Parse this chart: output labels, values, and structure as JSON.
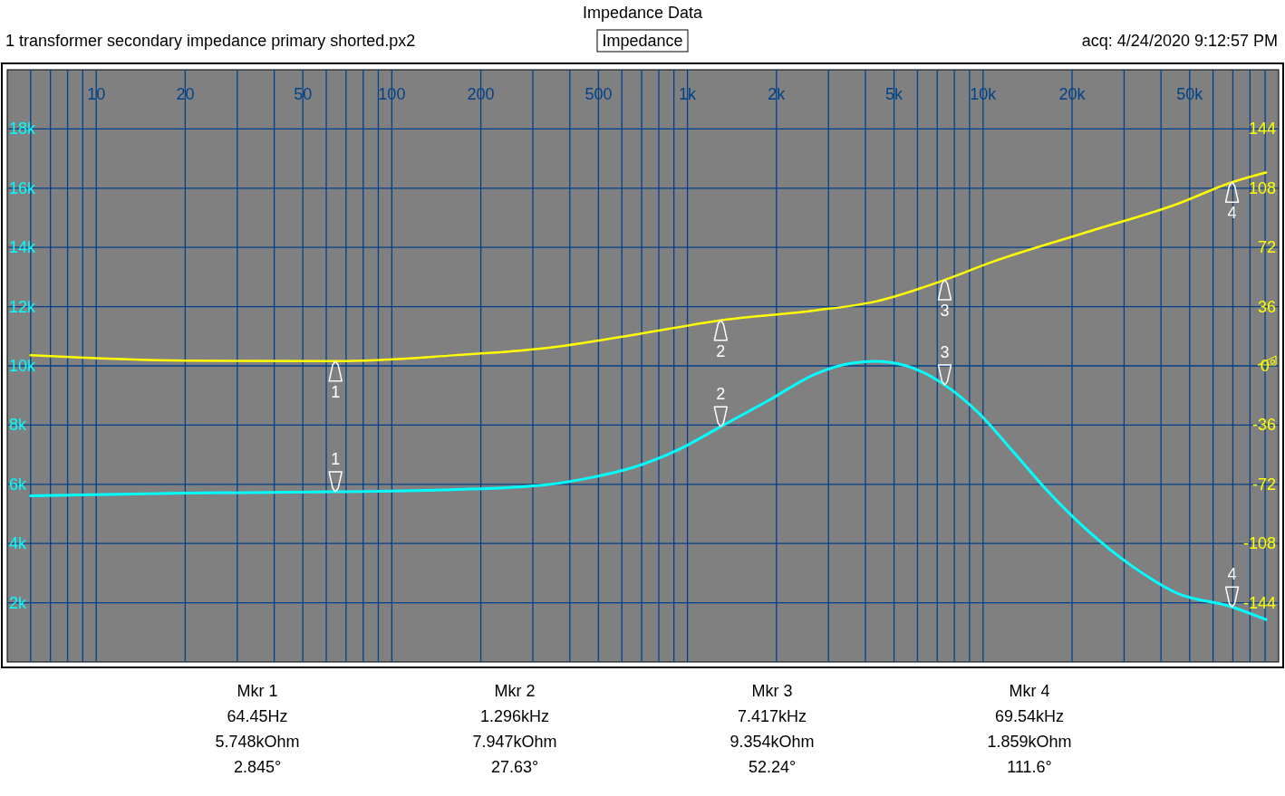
{
  "chart_data": {
    "type": "line",
    "title": "Impedance Data",
    "subtitle": "1 transformer secondary impedance primary shorted.px2",
    "annotations": [
      "Impedance",
      "acq: 4/24/2020 9:12:57 PM",
      "Mkr 1",
      "64.45Hz",
      "5.748kOhm",
      "2.845°",
      "Mkr 2",
      "1.296kHz",
      "7.947kOhm",
      "27.63°",
      "Mkr 3",
      "7.417kHz",
      "9.354kOhm",
      "52.24°",
      "Mkr 4",
      "69.54kHz",
      "1.859kOhm",
      "111.6°",
      {
        "text": "1",
        "x": 64.45,
        "y": 5748
      },
      {
        "text": "2",
        "x": 1296,
        "y": 7947
      },
      {
        "text": "3",
        "x": 7417,
        "y": 9354
      },
      {
        "text": "4",
        "x": 69540,
        "y": 1859
      },
      "1",
      "2",
      "3",
      "4"
    ],
    "log": "x",
    "grid": true,
    "xlim": [
      5,
      100000
    ],
    "xticks": [
      {
        "value": 6,
        "label": null
      },
      {
        "value": 7,
        "label": null
      },
      {
        "value": 8,
        "label": null
      },
      {
        "value": 9,
        "label": null
      },
      10,
      20,
      {
        "value": 30,
        "label": null
      },
      {
        "value": 40,
        "label": null
      },
      50,
      {
        "value": 60,
        "label": null
      },
      {
        "value": 70,
        "label": null
      },
      {
        "value": 80,
        "label": null
      },
      {
        "value": 90,
        "label": null
      },
      100,
      200,
      {
        "value": 300,
        "label": null
      },
      {
        "value": 400,
        "label": null
      },
      500,
      {
        "value": 600,
        "label": null
      },
      {
        "value": 700,
        "label": null
      },
      {
        "value": 800,
        "label": null
      },
      {
        "value": 900,
        "label": null
      },
      {
        "value": 1000,
        "label": "1k"
      },
      {
        "value": 2000,
        "label": "2k"
      },
      {
        "value": 3000,
        "label": null
      },
      {
        "value": 4000,
        "label": null
      },
      {
        "value": 5000,
        "label": "5k"
      },
      {
        "value": 6000,
        "label": null
      },
      {
        "value": 7000,
        "label": null
      },
      {
        "value": 8000,
        "label": null
      },
      {
        "value": 9000,
        "label": null
      },
      {
        "value": 10000,
        "label": "10k"
      },
      {
        "value": 20000,
        "label": "20k"
      },
      {
        "value": 30000,
        "label": null
      },
      {
        "value": 40000,
        "label": null
      },
      {
        "value": 50000,
        "label": "50k"
      },
      {
        "value": 60000,
        "label": null
      },
      {
        "value": 70000,
        "label": null
      },
      {
        "value": 80000,
        "label": null
      },
      {
        "value": 90000,
        "label": null
      }
    ],
    "ylim": [
      0,
      20000
    ],
    "yticks": [
      {
        "value": 2000,
        "label": "2k"
      },
      {
        "value": 4000,
        "label": "4k"
      },
      {
        "value": 6000,
        "label": "6k"
      },
      {
        "value": 8000,
        "label": "8k"
      },
      {
        "value": 10000,
        "label": "10k"
      },
      {
        "value": 12000,
        "label": "12k"
      },
      {
        "value": 14000,
        "label": "14k"
      },
      {
        "value": 16000,
        "label": "16k"
      },
      {
        "value": 18000,
        "label": "18k"
      }
    ],
    "y2lim": [
      -180,
      180
    ],
    "y2ticks": [
      -144,
      -108,
      -72,
      -36,
      {
        "value": 0,
        "label": "0°"
      },
      36,
      72,
      108,
      144
    ],
    "series": [
      {
        "color": "#00ffff",
        "x": [
          6,
          20,
          64.45,
          162,
          329,
          468,
          665,
          946,
          1296,
          1910,
          2717,
          3603,
          4299,
          5500,
          7417,
          9660,
          12800,
          16900,
          22500,
          32000,
          45400,
          69540,
          90600
        ],
        "values": [
          5610,
          5700,
          5748,
          5820,
          5980,
          6220,
          6590,
          7200,
          7947,
          8870,
          9730,
          10090,
          10150,
          10000,
          9354,
          8410,
          7040,
          5670,
          4450,
          3230,
          2320,
          1859,
          1430
        ]
      },
      {
        "axis": "y2",
        "color": "#ffff00",
        "x": [
          6,
          20,
          64.45,
          162,
          329,
          665,
          1296,
          2717,
          4299,
          7417,
          10600,
          22500,
          45400,
          69540,
          90600
        ],
        "values": [
          6.4,
          3.1,
          2.845,
          6.4,
          10.7,
          19,
          27.63,
          33.7,
          39,
          52.24,
          62.8,
          81.3,
          98.4,
          111.6,
          117.5
        ]
      }
    ]
  }
}
